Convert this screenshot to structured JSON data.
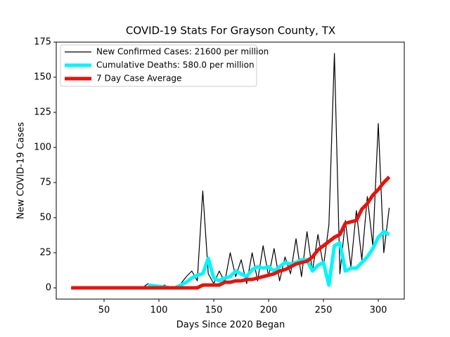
{
  "chart_data": {
    "type": "line",
    "title": "COVID-19 Stats For Grayson County, TX",
    "xlabel": "Days Since 2020 Began",
    "ylabel": "New COVID-19 Cases",
    "x": [
      20,
      25,
      30,
      35,
      40,
      45,
      50,
      55,
      60,
      65,
      70,
      75,
      80,
      85,
      90,
      95,
      100,
      105,
      110,
      115,
      120,
      125,
      130,
      135,
      140,
      145,
      150,
      155,
      160,
      165,
      170,
      175,
      180,
      185,
      190,
      195,
      200,
      205,
      210,
      215,
      220,
      225,
      230,
      235,
      240,
      245,
      250,
      255,
      260,
      265,
      270,
      275,
      280,
      285,
      290,
      295,
      300,
      305,
      310
    ],
    "series": [
      {
        "name": "New Confirmed Cases: 21600 per million",
        "color": "#000000",
        "width": 1.2,
        "values": [
          0,
          0,
          0,
          0,
          0,
          0,
          0,
          0,
          0,
          0,
          0,
          0,
          0,
          0,
          3,
          1,
          0,
          2,
          0,
          1,
          3,
          8,
          12,
          5,
          69,
          10,
          3,
          12,
          4,
          25,
          8,
          20,
          3,
          25,
          5,
          30,
          8,
          28,
          5,
          22,
          10,
          35,
          8,
          40,
          12,
          38,
          15,
          45,
          167,
          10,
          48,
          15,
          55,
          20,
          65,
          30,
          117,
          25,
          57
        ]
      },
      {
        "name": "Cumulative Deaths: 580.0 per million",
        "color": "#00f5ff",
        "width": 5,
        "values": [
          null,
          null,
          null,
          null,
          null,
          null,
          null,
          null,
          null,
          null,
          null,
          null,
          null,
          null,
          2,
          1.5,
          1,
          0.5,
          0,
          0,
          2,
          4,
          7,
          9,
          10,
          21,
          7,
          5,
          7,
          8,
          12,
          10,
          8,
          13,
          15,
          14,
          15,
          12,
          15,
          18,
          17,
          18,
          20,
          20,
          12,
          16,
          18,
          2,
          30,
          32,
          12,
          14,
          14,
          18,
          22,
          28,
          36,
          40,
          38
        ]
      },
      {
        "name": "7 Day Case Average",
        "color": "#e8120c",
        "width": 5,
        "values": [
          0,
          0,
          0,
          0,
          0,
          0,
          0,
          0,
          0,
          0,
          0,
          0,
          0,
          0,
          0,
          0,
          0,
          0,
          0,
          0,
          0,
          0,
          0,
          0,
          2,
          2,
          2,
          2,
          4,
          4,
          5,
          5,
          6,
          6,
          7,
          8,
          9,
          10,
          12,
          13,
          15,
          17,
          18,
          19,
          22,
          27,
          30,
          33,
          36,
          38,
          46,
          47,
          48,
          56,
          60,
          66,
          70,
          75,
          79
        ]
      }
    ],
    "xlim": [
      6.4,
      323.7
    ],
    "ylim": [
      -8,
      175
    ],
    "xticks": [
      50,
      100,
      150,
      200,
      250,
      300
    ],
    "yticks": [
      0,
      25,
      50,
      75,
      100,
      125,
      150,
      175
    ],
    "legend": "upper left"
  }
}
